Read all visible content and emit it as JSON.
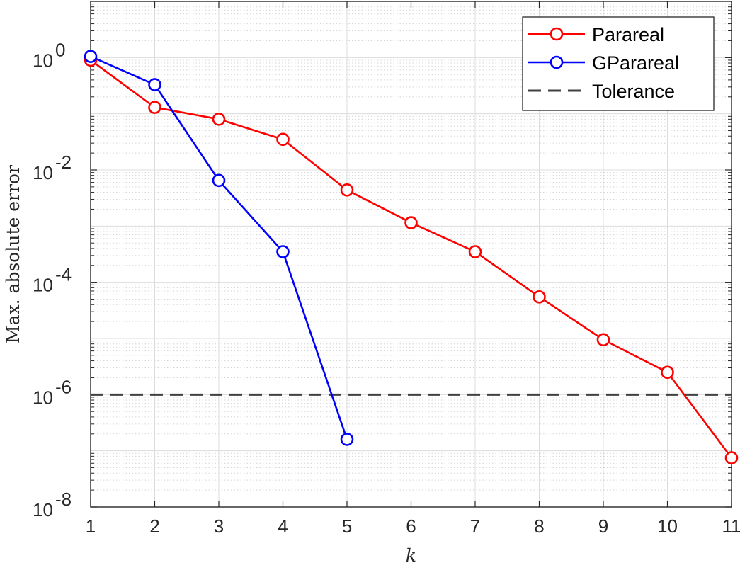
{
  "chart_data": {
    "type": "line",
    "title": "",
    "xlabel": "k",
    "ylabel": "Max. absolute error",
    "y_scale": "log",
    "xlim": [
      1,
      11
    ],
    "ylim": [
      1e-08,
      10
    ],
    "x_ticks": [
      1,
      2,
      3,
      4,
      5,
      6,
      7,
      8,
      9,
      10,
      11
    ],
    "y_ticks": [
      {
        "base": "10",
        "exp": "0",
        "value": 1
      },
      {
        "base": "10",
        "exp": "-2",
        "value": 0.01
      },
      {
        "base": "10",
        "exp": "-4",
        "value": 0.0001
      },
      {
        "base": "10",
        "exp": "-6",
        "value": 1e-06
      },
      {
        "base": "10",
        "exp": "-8",
        "value": 1e-08
      }
    ],
    "grid": true,
    "minor_grid": true,
    "legend_position": "top-right",
    "series": [
      {
        "name": "Parareal",
        "color": "#ff0000",
        "marker": "circle",
        "x": [
          1,
          2,
          3,
          4,
          5,
          6,
          7,
          8,
          9,
          10,
          11
        ],
        "y": [
          0.9,
          0.13,
          0.08,
          0.035,
          0.0044,
          0.00115,
          0.00035,
          5.5e-05,
          9.5e-06,
          2.5e-06,
          7.5e-08
        ]
      },
      {
        "name": "GParareal",
        "color": "#0000ff",
        "marker": "circle",
        "x": [
          1,
          2,
          3,
          4,
          5
        ],
        "y": [
          1.05,
          0.33,
          0.0065,
          0.00035,
          1.6e-07
        ]
      },
      {
        "name": "Tolerance",
        "color": "#404040",
        "style": "dashed",
        "y_const": 1e-06
      }
    ]
  }
}
